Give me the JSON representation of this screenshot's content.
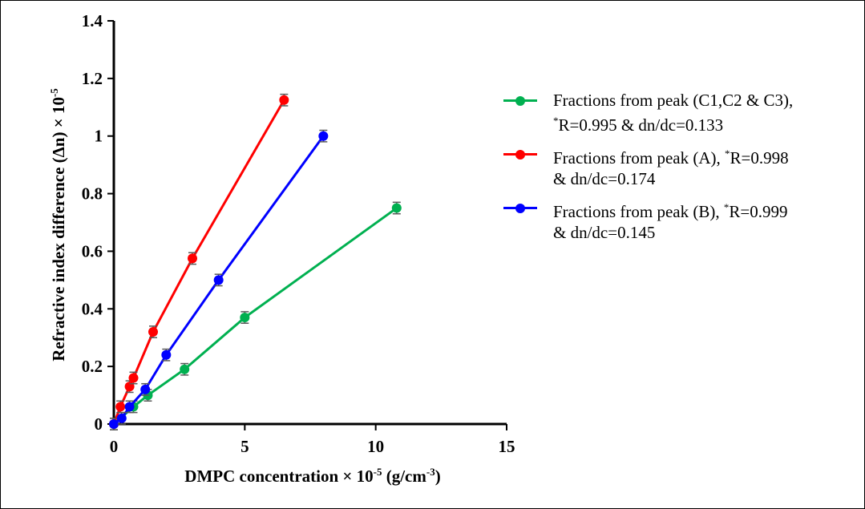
{
  "chart_data": {
    "type": "line",
    "title": "",
    "xlabel": "DMPC concentration × 10",
    "xlabel_sup": "-5",
    "xlabel_unit_pre": " (g/cm",
    "xlabel_unit_sup": "-3",
    "xlabel_unit_post": ")",
    "ylabel": "Refractive index difference (Δn) × 10",
    "ylabel_sup": "-5",
    "xlim": [
      0,
      15
    ],
    "ylim": [
      0,
      1.4
    ],
    "xticks": [
      0,
      5,
      10,
      15
    ],
    "xtick_labels": [
      "0",
      "5",
      "10",
      "15"
    ],
    "yticks": [
      0,
      0.2,
      0.4,
      0.6,
      0.8,
      1.0,
      1.2,
      1.4
    ],
    "ytick_labels": [
      "0",
      "0.2",
      "0.4",
      "0.6",
      "0.8",
      "1",
      "1.2",
      "1.4"
    ],
    "grid": false,
    "legend_position": "right",
    "error_bar": 0.02,
    "series": [
      {
        "name": "Fractions from peak (C1,C2 & C3), *R=0.995 & dn/dc=0.133",
        "legend_line1": "Fractions from peak (C1,C2 & C3),",
        "legend_line2_sup": "*",
        "legend_line2": "R=0.995 & dn/dc=0.133",
        "color": "#00b050",
        "x": [
          0,
          0.75,
          1.3,
          2.7,
          5,
          10.8
        ],
        "y": [
          0,
          0.06,
          0.1,
          0.19,
          0.37,
          0.75
        ]
      },
      {
        "name": "Fractions from peak (A), *R=0.998 & dn/dc=0.174",
        "legend_line1_pre": "Fractions from peak (A), ",
        "legend_line1_sup": "*",
        "legend_line1_post": "R=0.998",
        "legend_line2": "& dn/dc=0.174",
        "color": "#ff0000",
        "x": [
          0,
          0.25,
          0.6,
          0.75,
          1.5,
          3,
          6.5
        ],
        "y": [
          0,
          0.06,
          0.13,
          0.16,
          0.32,
          0.575,
          1.125
        ]
      },
      {
        "name": "Fractions from peak (B), *R=0.999 & dn/dc=0.145",
        "legend_line1_pre": "Fractions from peak (B), ",
        "legend_line1_sup": "*",
        "legend_line1_post": "R=0.999",
        "legend_line2": "& dn/dc=0.145",
        "color": "#0000ff",
        "x": [
          0,
          0.3,
          0.6,
          1.2,
          2,
          4,
          8
        ],
        "y": [
          0,
          0.02,
          0.06,
          0.12,
          0.24,
          0.5,
          1.0
        ]
      }
    ]
  }
}
